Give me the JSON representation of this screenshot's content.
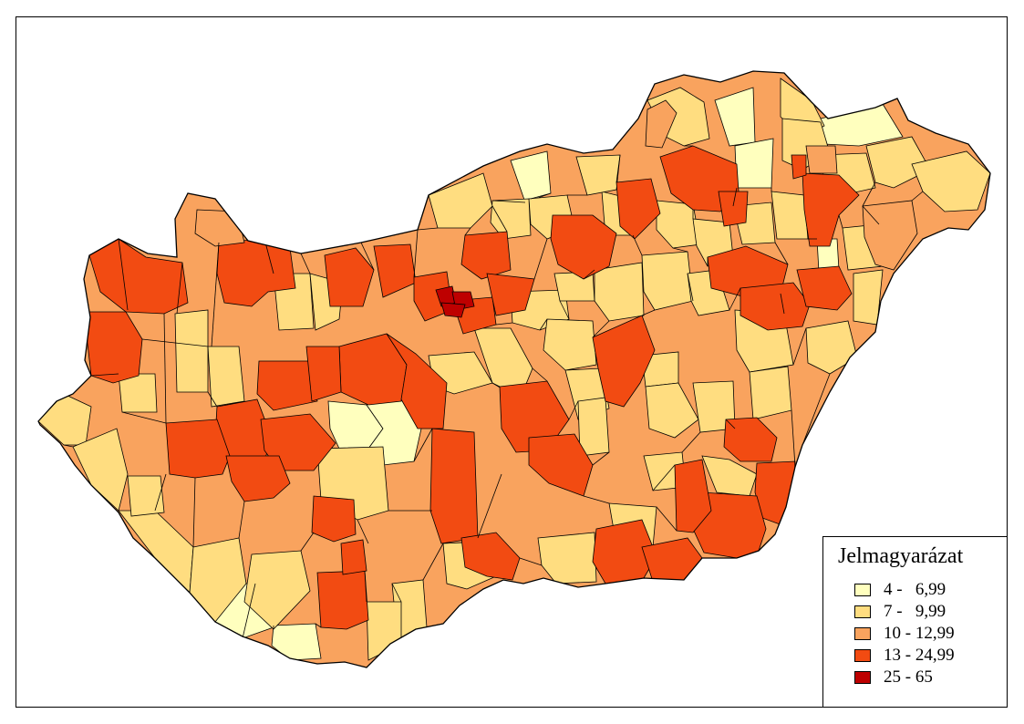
{
  "legend": {
    "title": "Jelmagyarázat",
    "classes": [
      {
        "label": "4 -   6,99",
        "color": "#FFFFBE"
      },
      {
        "label": "7 -   9,99",
        "color": "#FFDD80"
      },
      {
        "label": "10 - 12,99",
        "color": "#F9A35E"
      },
      {
        "label": "13 - 24,99",
        "color": "#F24B12"
      },
      {
        "label": "25 - 65",
        "color": "#BE0000"
      }
    ]
  },
  "map": {
    "boundary_color": "#000000"
  }
}
